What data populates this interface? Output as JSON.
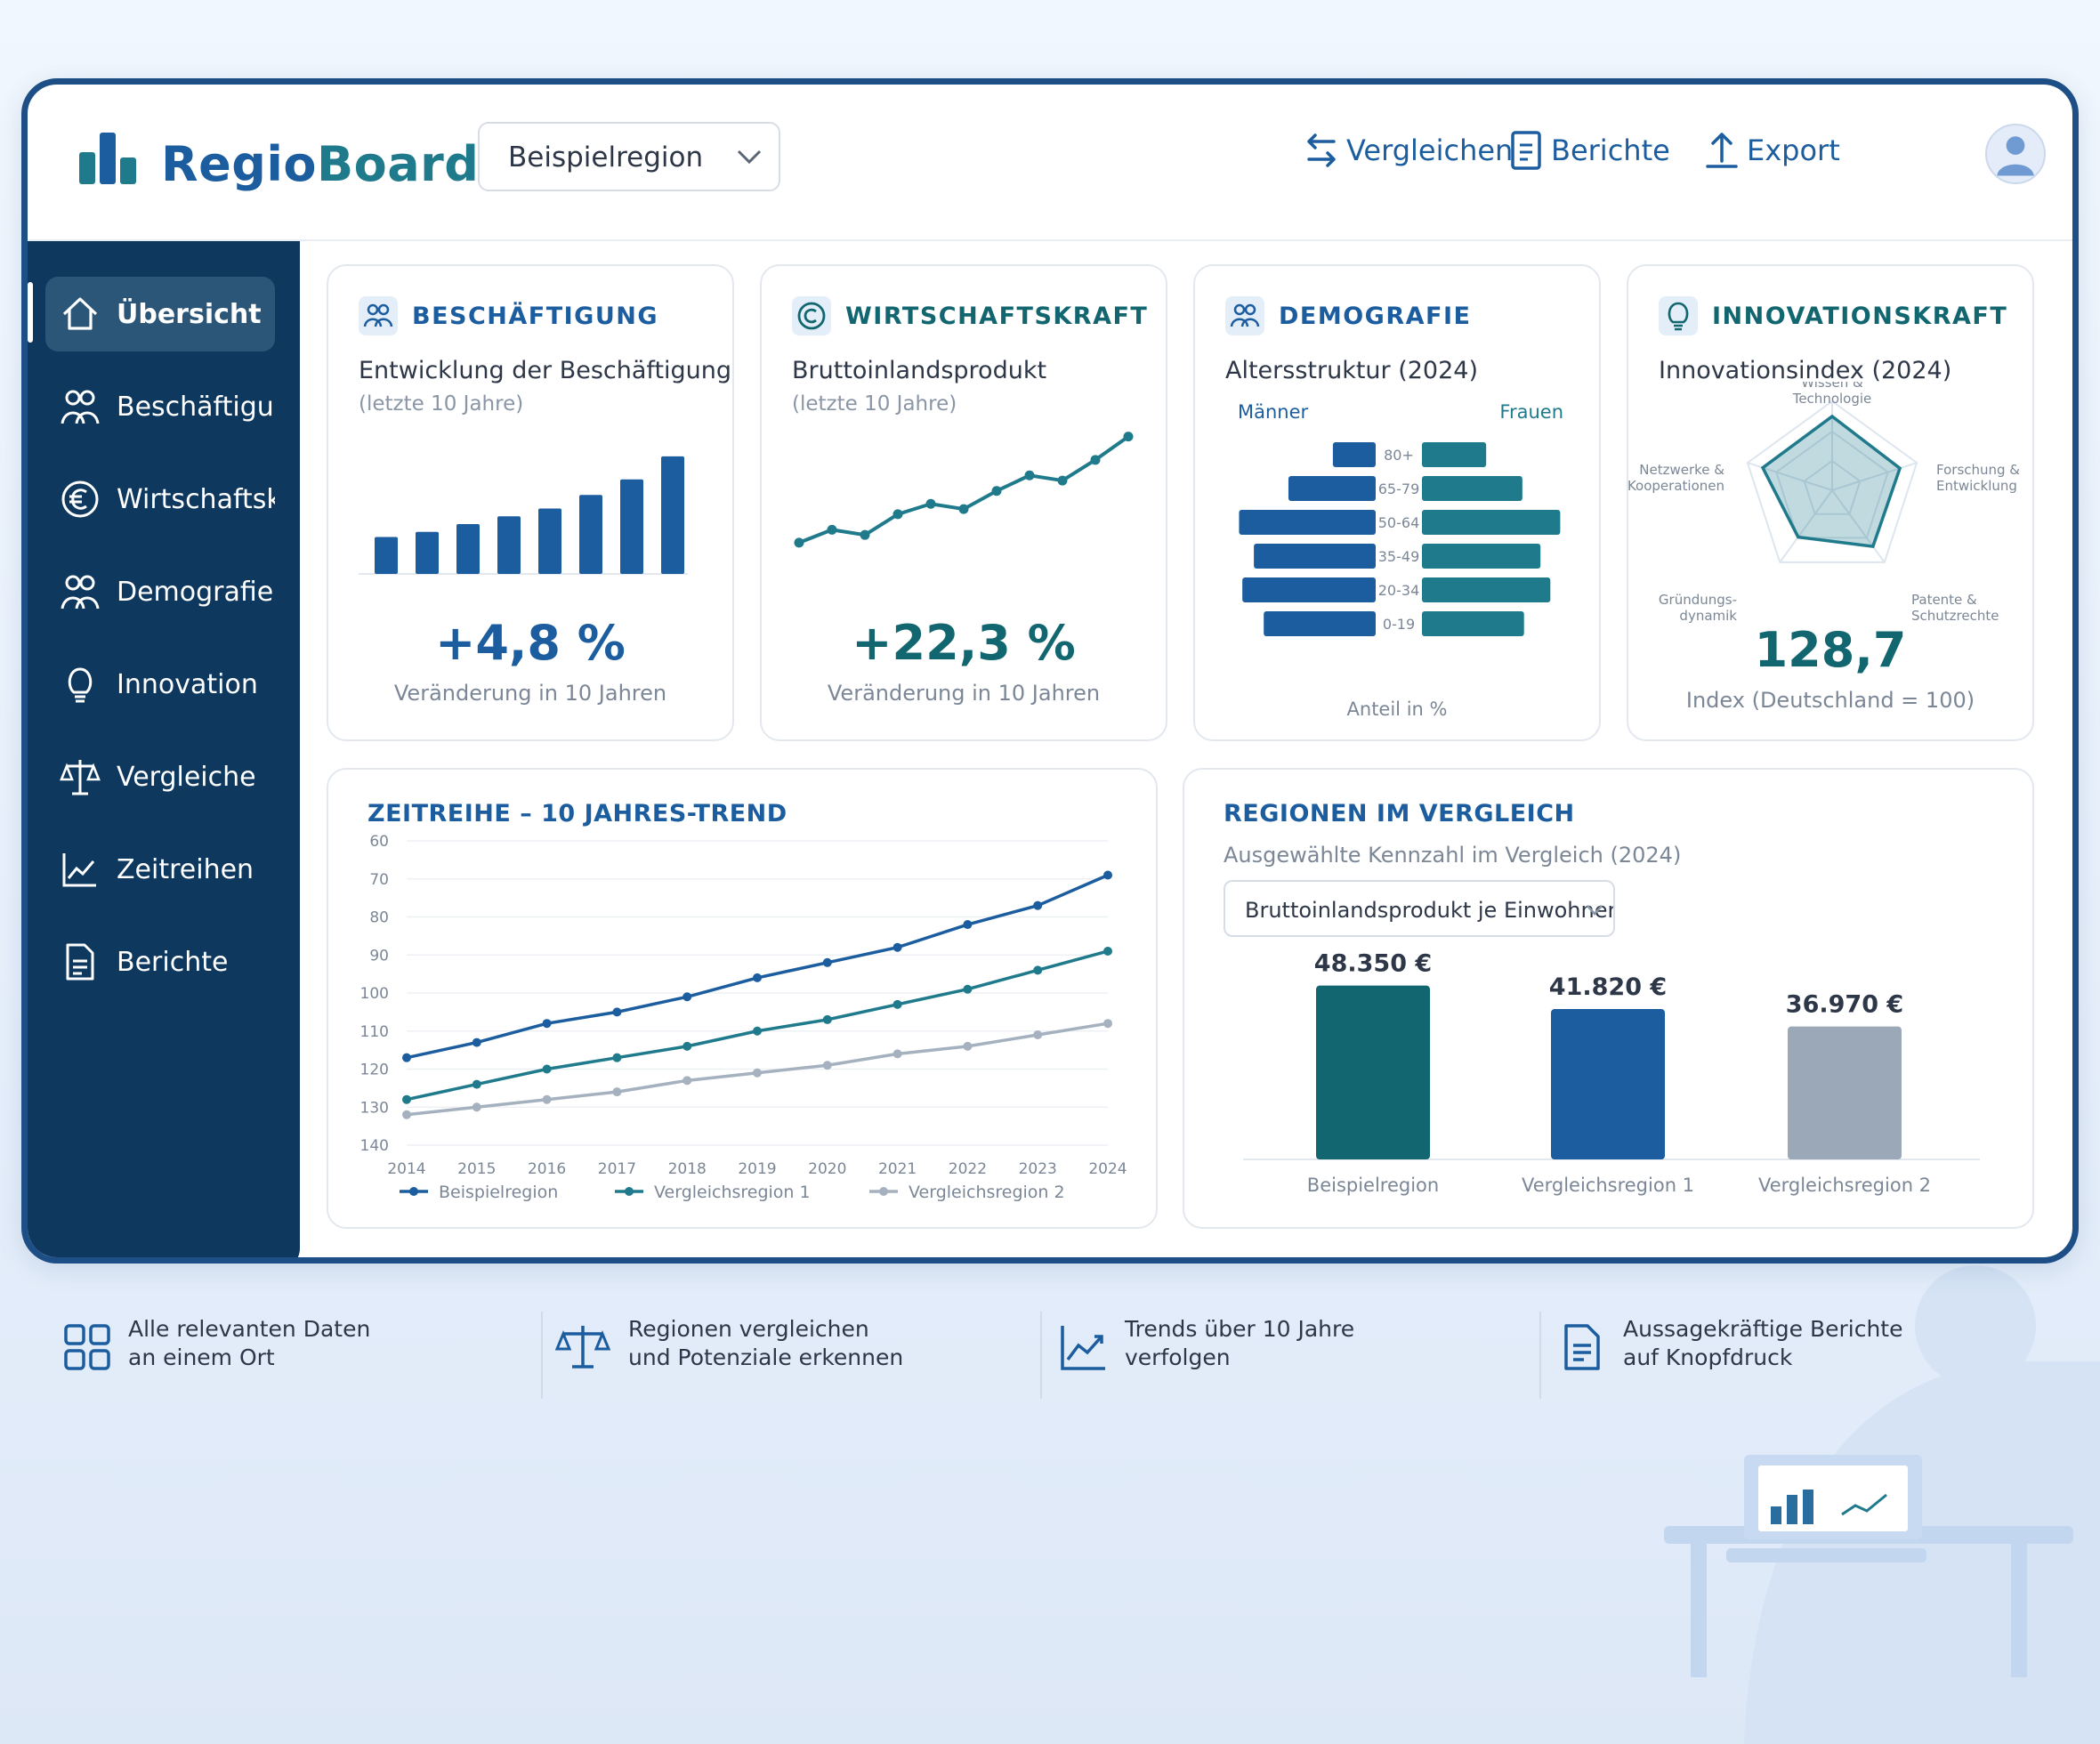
{
  "app": {
    "logo_part1": "Regio",
    "logo_part2": "Board",
    "region_selected": "Beispielregion"
  },
  "header_nav": {
    "compare": "Vergleichen",
    "reports": "Berichte",
    "export": "Export"
  },
  "sidebar": {
    "items": [
      {
        "label": "Übersicht",
        "icon": "home-icon"
      },
      {
        "label": "Beschäftigung",
        "icon": "people-icon"
      },
      {
        "label": "Wirtschaftskraft",
        "icon": "euro-icon"
      },
      {
        "label": "Demografie",
        "icon": "people-icon"
      },
      {
        "label": "Innovation",
        "icon": "lightbulb-icon"
      },
      {
        "label": "Vergleiche",
        "icon": "scale-icon"
      },
      {
        "label": "Zeitreihen",
        "icon": "line-chart-icon"
      },
      {
        "label": "Berichte",
        "icon": "document-icon"
      }
    ]
  },
  "cards": {
    "employment": {
      "title": "BESCHÄFTIGUNG",
      "subtitle": "Entwicklung der Beschäftigung",
      "period": "(letzte 10 Jahre)",
      "kpi": "+4,8 %",
      "kpi_label": "Veränderung in 10 Jahren"
    },
    "economy": {
      "title": "WIRTSCHAFTSKRAFT",
      "subtitle": "Bruttoinlandsprodukt",
      "period": "(letzte 10 Jahre)",
      "kpi": "+22,3 %",
      "kpi_label": "Veränderung in 10 Jahren"
    },
    "demography": {
      "title": "DEMOGRAFIE",
      "subtitle": "Altersstruktur (2024)",
      "men": "Männer",
      "women": "Frauen",
      "footer": "Anteil in %"
    },
    "innovation": {
      "title": "INNOVATIONSKRAFT",
      "subtitle": "Innovationsindex (2024)",
      "kpi": "128,7",
      "kpi_label": "Index (Deutschland = 100)"
    },
    "timeseries": {
      "title": "ZEITREIHE – 10 JAHRES-TREND"
    },
    "regions": {
      "title": "REGIONEN IM VERGLEICH",
      "subtitle": "Ausgewählte Kennzahl im Vergleich (2024)",
      "select": "Bruttoinlandsprodukt je Einwohner"
    }
  },
  "features": [
    {
      "line1": "Alle relevanten Daten",
      "line2": "an einem Ort",
      "icon": "grid-icon"
    },
    {
      "line1": "Regionen vergleichen",
      "line2": "und Potenziale erkennen",
      "icon": "scale-icon"
    },
    {
      "line1": "Trends über 10 Jahre",
      "line2": "verfolgen",
      "icon": "line-chart-icon"
    },
    {
      "line1": "Aussagekräftige Berichte",
      "line2": "auf Knopfdruck",
      "icon": "document-icon"
    }
  ],
  "colors": {
    "primary": "#1b5d9e",
    "teal": "#1f7a8c",
    "dark_teal": "#12666f",
    "gray": "#9aa8b8",
    "sidebar": "#0e385e"
  },
  "chart_data": [
    {
      "id": "employment",
      "type": "bar",
      "values": [
        9.5,
        10.8,
        12.8,
        14.8,
        16.8,
        20.3,
        24.3,
        30.2
      ]
    },
    {
      "id": "gdp",
      "type": "line",
      "values": [
        100,
        105,
        103,
        111,
        115,
        113,
        120,
        126,
        124,
        132,
        141
      ]
    },
    {
      "id": "age-pyramid",
      "type": "bar",
      "categories": [
        "80+",
        "65-79",
        "50-64",
        "35-49",
        "20-34",
        "0-19"
      ],
      "series": [
        {
          "name": "Männer",
          "values": [
            2.6,
            5.3,
            8.3,
            7.4,
            8.1,
            6.8
          ]
        },
        {
          "name": "Frauen",
          "values": [
            3.9,
            6.1,
            8.4,
            7.2,
            7.8,
            6.2
          ]
        }
      ]
    },
    {
      "id": "innovation-radar",
      "type": "radar",
      "categories": [
        "Wissen & Technologie",
        "Forschung & Entwicklung",
        "Patente & Schutzrechte",
        "Gründungs-dynamik",
        "Netzwerke & Kooperationen"
      ],
      "values": [
        0.83,
        0.8,
        0.78,
        0.65,
        0.82
      ]
    },
    {
      "id": "timeseries",
      "type": "line",
      "x": [
        "2014",
        "2015",
        "2016",
        "2017",
        "2018",
        "2019",
        "2020",
        "2021",
        "2022",
        "2023",
        "2024"
      ],
      "ylim": [
        140,
        60
      ],
      "yticks": [
        60,
        70,
        80,
        90,
        100,
        110,
        120,
        130,
        140
      ],
      "series": [
        {
          "name": "Beispielregion",
          "values": [
            117,
            113,
            108,
            105,
            101,
            96,
            92,
            88,
            82,
            77,
            69
          ]
        },
        {
          "name": "Vergleichsregion 1",
          "values": [
            128,
            124,
            120,
            117,
            114,
            110,
            107,
            103,
            99,
            94,
            89
          ]
        },
        {
          "name": "Vergleichsregion 2",
          "values": [
            132,
            130,
            128,
            126,
            123,
            121,
            119,
            116,
            114,
            111,
            108
          ]
        }
      ]
    },
    {
      "id": "regions",
      "type": "bar",
      "categories": [
        "Beispielregion",
        "Vergleichsregion 1",
        "Vergleichsregion 2"
      ],
      "values": [
        48350,
        41820,
        36970
      ],
      "labels": [
        "48.350 €",
        "41.820 €",
        "36.970 €"
      ]
    }
  ]
}
